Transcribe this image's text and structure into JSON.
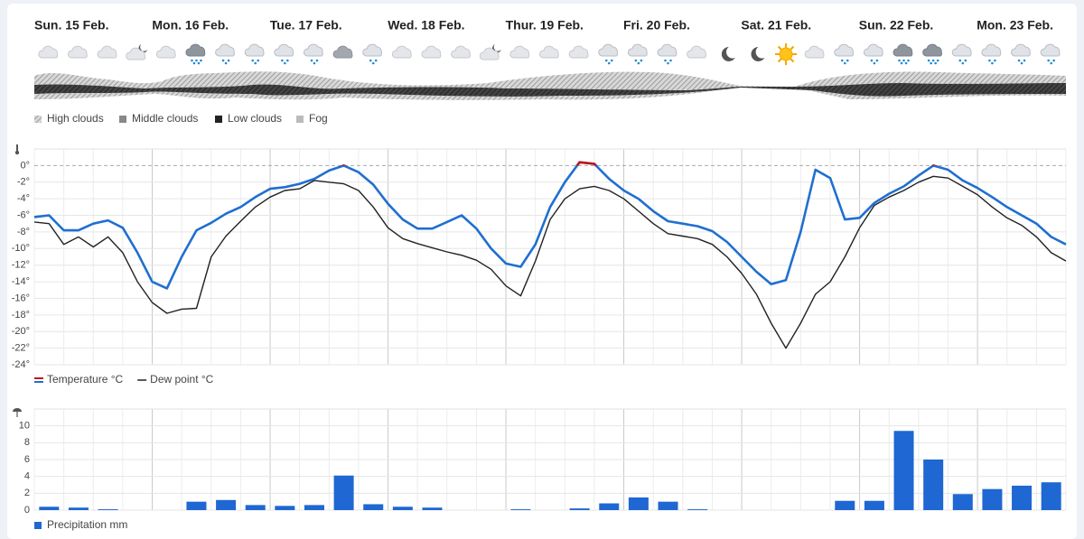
{
  "days": [
    "Sun. 15 Feb.",
    "Mon. 16 Feb.",
    "Tue. 17 Feb.",
    "Wed. 18 Feb.",
    "Thur. 19 Feb.",
    "Fri. 20 Feb.",
    "Sat. 21 Feb.",
    "Sun. 22 Feb.",
    "Mon. 23 Feb."
  ],
  "cloud_legend": [
    "High clouds",
    "Middle clouds",
    "Low clouds",
    "Fog"
  ],
  "chart_data": [
    {
      "type": "line",
      "series": [
        {
          "name": "Temperature °C",
          "color": "#1f6fd1",
          "values": [
            -6.2,
            -6.0,
            -7.8,
            -7.8,
            -7.0,
            -6.6,
            -7.5,
            -10.5,
            -14,
            -14.8,
            -11,
            -7.8,
            -6.9,
            -5.8,
            -5,
            -3.8,
            -2.8,
            -2.6,
            -2.2,
            -1.6,
            -0.6,
            0,
            -0.8,
            -2.3,
            -4.6,
            -6.5,
            -7.6,
            -7.6,
            -6.8,
            -6,
            -7.6,
            -10,
            -11.8,
            -12.2,
            -9.5,
            -5,
            -2,
            0.4,
            0.2,
            -1.6,
            -3,
            -4,
            -5.5,
            -6.7,
            -7,
            -7.3,
            -7.9,
            -9.2,
            -11,
            -12.8,
            -14.3,
            -13.8,
            -8,
            -0.5,
            -1.5,
            -6.5,
            -6.3,
            -4.5,
            -3.4,
            -2.5,
            -1.2,
            0,
            -0.5,
            -1.8,
            -2.7,
            -3.8,
            -5,
            -6,
            -7,
            -8.6,
            -9.5
          ]
        },
        {
          "name": "Dew point °C",
          "color": "#222222",
          "values": [
            -6.8,
            -7,
            -9.5,
            -8.6,
            -9.8,
            -8.6,
            -10.5,
            -14,
            -16.5,
            -17.8,
            -17.3,
            -17.2,
            -11,
            -8.5,
            -6.7,
            -5,
            -3.8,
            -3,
            -2.8,
            -1.8,
            -2,
            -2.2,
            -3,
            -5,
            -7.5,
            -8.8,
            -9.4,
            -9.9,
            -10.4,
            -10.8,
            -11.4,
            -12.5,
            -14.5,
            -15.7,
            -11.5,
            -6.5,
            -4,
            -2.8,
            -2.5,
            -3,
            -4,
            -5.5,
            -7,
            -8.2,
            -8.5,
            -8.8,
            -9.5,
            -11,
            -13,
            -15.5,
            -19,
            -22,
            -19,
            -15.5,
            -14,
            -11,
            -7.5,
            -4.8,
            -3.8,
            -3,
            -2,
            -1.3,
            -1.5,
            -2.5,
            -3.5,
            -5,
            -6.3,
            -7.2,
            -8.6,
            -10.5,
            -11.5
          ]
        }
      ],
      "reference_line": 0,
      "highlight_color": "#c0141b",
      "ylim": [
        -24,
        2
      ],
      "yticks": [
        {
          "value": 0,
          "label": "0°"
        },
        {
          "value": -2,
          "label": "-2°"
        },
        {
          "value": -4,
          "label": "-4°"
        },
        {
          "value": -6,
          "label": "-6°"
        },
        {
          "value": -8,
          "label": "-8°"
        },
        {
          "value": -10,
          "label": "-10°"
        },
        {
          "value": -12,
          "label": "-12°"
        },
        {
          "value": -14,
          "label": "-14°"
        },
        {
          "value": -16,
          "label": "-16°"
        },
        {
          "value": -18,
          "label": "-18°"
        },
        {
          "value": -20,
          "label": "-20°"
        },
        {
          "value": -22,
          "label": "-22°"
        },
        {
          "value": -24,
          "label": "-24°"
        }
      ],
      "grid": true
    },
    {
      "type": "bar",
      "series": [
        {
          "name": "Precipitation mm",
          "color": "#1f67d2",
          "values": [
            0.4,
            0.3,
            0.1,
            0,
            0,
            1.0,
            1.2,
            0.6,
            0.5,
            0.6,
            4.1,
            0.7,
            0.4,
            0.3,
            0,
            0,
            0.1,
            0,
            0.2,
            0.8,
            1.5,
            1.0,
            0.1,
            0,
            0,
            0,
            0,
            1.1,
            1.1,
            9.4,
            6.0,
            1.9,
            2.5,
            2.9,
            3.3
          ]
        }
      ],
      "ylim": [
        0,
        12
      ],
      "yticks": [
        0,
        2,
        4,
        6,
        8,
        10
      ],
      "grid": true
    }
  ]
}
